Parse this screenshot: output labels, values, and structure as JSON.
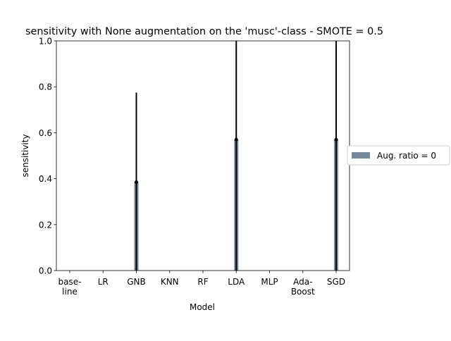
{
  "chart_data": {
    "type": "bar",
    "title": "sensitivity with None augmentation on the 'musc'-class - SMOTE = 0.5",
    "xlabel": "Model",
    "ylabel": "sensitivity",
    "categories": [
      [
        "base-",
        "line"
      ],
      [
        "LR"
      ],
      [
        "GNB"
      ],
      [
        "KNN"
      ],
      [
        "RF"
      ],
      [
        "LDA"
      ],
      [
        "MLP"
      ],
      [
        "Ada-",
        "Boost"
      ],
      [
        "SGD"
      ]
    ],
    "series": [
      {
        "name": "Aug. ratio = 0",
        "color": "#778899",
        "values": [
          0,
          0,
          0.385,
          0,
          0,
          0.57,
          0,
          0,
          0.57
        ],
        "error_upper": [
          0,
          0,
          0.775,
          0,
          0,
          1.0,
          0,
          0,
          1.0
        ]
      }
    ],
    "ylim": [
      0,
      1.0
    ],
    "yticks": [
      "0.0",
      "0.2",
      "0.4",
      "0.6",
      "0.8",
      "1.0"
    ],
    "legend_position": "right"
  }
}
